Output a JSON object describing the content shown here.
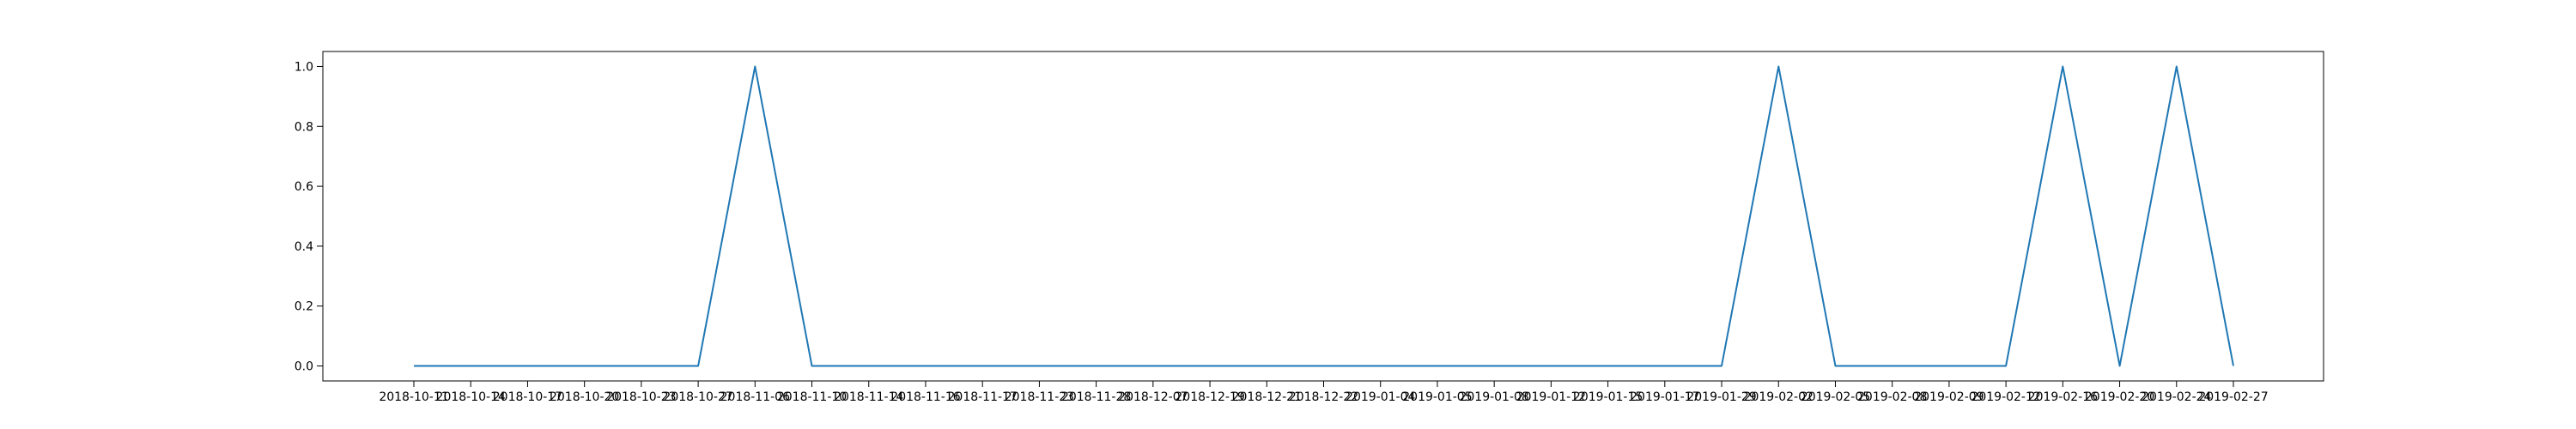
{
  "chart_data": {
    "type": "line",
    "title": "",
    "xlabel": "",
    "ylabel": "",
    "x_ticks": [
      "2018-10-11",
      "2018-10-14",
      "2018-10-17",
      "2018-10-20",
      "2018-10-23",
      "2018-10-27",
      "2018-11-06",
      "2018-11-10",
      "2018-11-14",
      "2018-11-16",
      "2018-11-17",
      "2018-11-23",
      "2018-11-28",
      "2018-12-07",
      "2018-12-19",
      "2018-12-21",
      "2018-12-22",
      "2019-01-04",
      "2019-01-05",
      "2019-01-08",
      "2019-01-12",
      "2019-01-15",
      "2019-01-17",
      "2019-01-29",
      "2019-02-02",
      "2019-02-05",
      "2019-02-08",
      "2019-02-09",
      "2019-02-12",
      "2019-02-16",
      "2019-02-20",
      "2019-02-24",
      "2019-02-27"
    ],
    "y_ticks": [
      "0.0",
      "0.2",
      "0.4",
      "0.6",
      "0.8",
      "1.0"
    ],
    "ylim": [
      -0.05,
      1.05
    ],
    "grid": false,
    "series": [
      {
        "color": "#1f77b4",
        "values": [
          0,
          0,
          0,
          0,
          0,
          0,
          1,
          0,
          0,
          0,
          0,
          0,
          0,
          0,
          0,
          0,
          0,
          0,
          0,
          0,
          0,
          0,
          0,
          0,
          1,
          0,
          0,
          0,
          0,
          1,
          0,
          1,
          0
        ]
      }
    ]
  }
}
